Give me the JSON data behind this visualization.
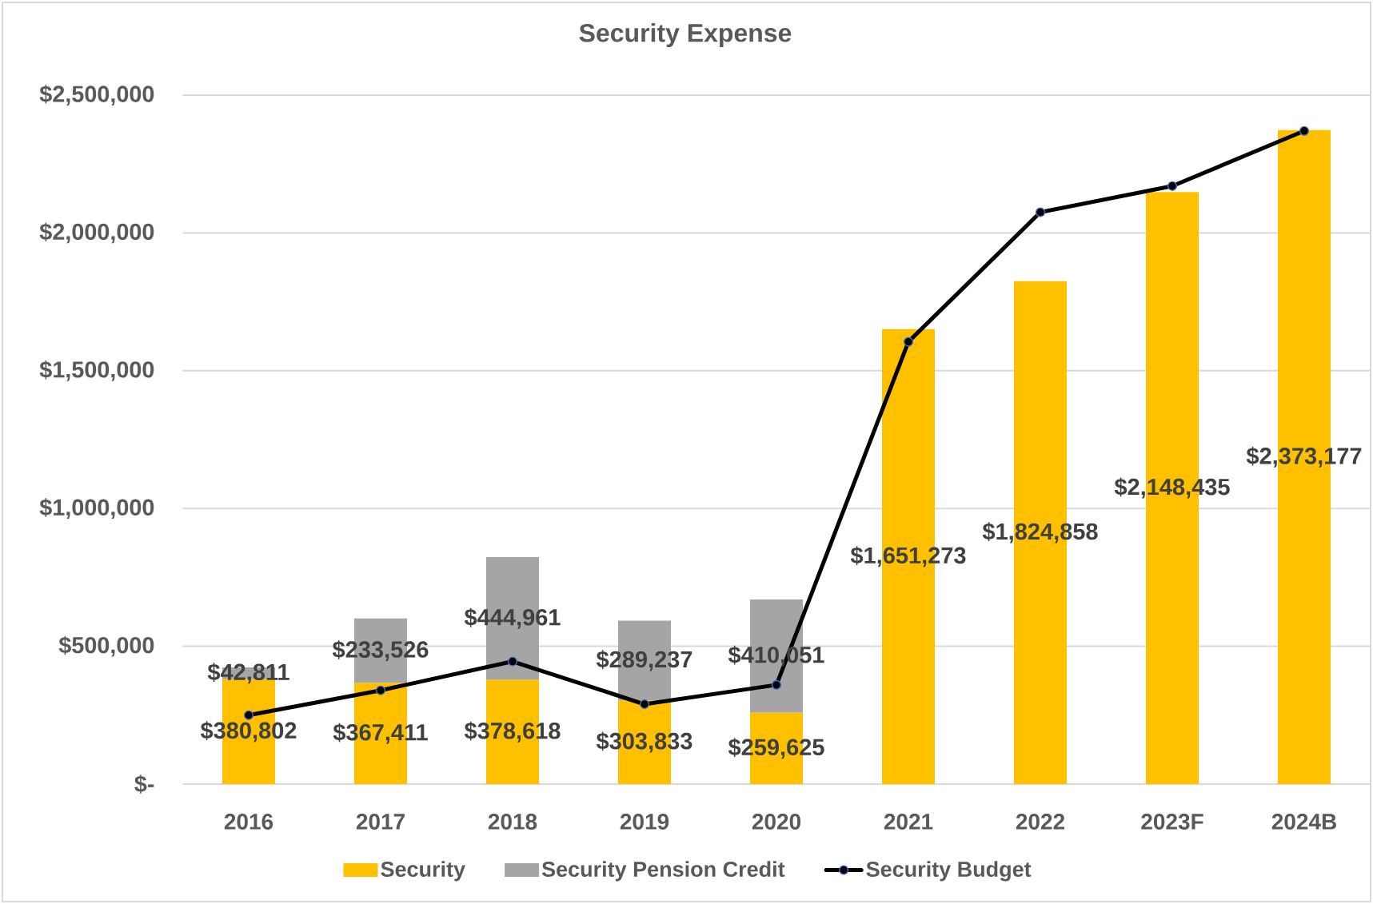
{
  "chart_data": {
    "type": "bar",
    "title": "Security Expense",
    "categories": [
      "2016",
      "2017",
      "2018",
      "2019",
      "2020",
      "2021",
      "2022",
      "2023F",
      "2024B"
    ],
    "stacked": true,
    "series": [
      {
        "name": "Security",
        "color": "#FFC000",
        "values": [
          380802,
          367411,
          378618,
          303833,
          259625,
          1651273,
          1824858,
          2148435,
          2373177
        ],
        "value_labels": [
          "$380,802",
          "$367,411",
          "$378,618",
          "$303,833",
          "$259,625",
          "$1,651,273",
          "$1,824,858",
          "$2,148,435",
          "$2,373,177"
        ]
      },
      {
        "name": "Security Pension Credit",
        "color": "#A5A5A5",
        "values": [
          42811,
          233526,
          444961,
          289237,
          410051,
          null,
          null,
          null,
          null
        ],
        "value_labels": [
          "$42,811",
          "$233,526",
          "$444,961",
          "$289,237",
          "$410,051",
          null,
          null,
          null,
          null
        ]
      },
      {
        "name": "Security Budget",
        "type": "line",
        "color": "#000000",
        "marker": "circle",
        "values": [
          250000,
          340000,
          445000,
          290000,
          360000,
          1605000,
          2075000,
          2170000,
          2370000
        ]
      }
    ],
    "ylim": [
      0,
      2500000
    ],
    "yticks": [
      {
        "value": 0,
        "label": "$-"
      },
      {
        "value": 500000,
        "label": "$500,000"
      },
      {
        "value": 1000000,
        "label": "$1,000,000"
      },
      {
        "value": 1500000,
        "label": "$1,500,000"
      },
      {
        "value": 2000000,
        "label": "$2,000,000"
      },
      {
        "value": 2500000,
        "label": "$2,500,000"
      }
    ],
    "grid": "y",
    "legend": "bottom"
  }
}
